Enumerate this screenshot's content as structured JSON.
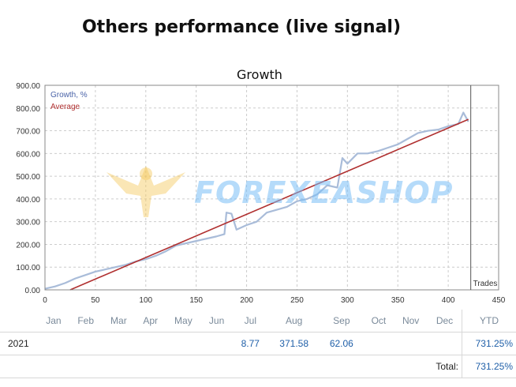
{
  "page_title": "Others performance (live signal)",
  "watermark_text": "FOREXEASHOP",
  "chart_data": {
    "type": "line",
    "title": "Growth",
    "xlim": [
      0,
      450
    ],
    "ylim": [
      0,
      900
    ],
    "x_ticks": [
      "0",
      "50",
      "100",
      "150",
      "200",
      "250",
      "300",
      "350",
      "400",
      "450"
    ],
    "y_ticks": [
      "0.00",
      "100.00",
      "200.00",
      "300.00",
      "400.00",
      "500.00",
      "600.00",
      "700.00",
      "800.00",
      "900.00"
    ],
    "trades_label": "Trades",
    "grid": true,
    "legend_position": "top-left",
    "colors": {
      "growth": "#a9bcd9",
      "average": "#b03030",
      "axis": "#888888",
      "grid": "#cccccc"
    },
    "series": [
      {
        "name": "Growth, %",
        "x": [
          0,
          10,
          20,
          30,
          40,
          50,
          60,
          70,
          80,
          90,
          100,
          110,
          120,
          130,
          140,
          150,
          160,
          170,
          178,
          180,
          185,
          190,
          200,
          210,
          220,
          240,
          250,
          260,
          270,
          280,
          290,
          295,
          300,
          310,
          320,
          330,
          340,
          350,
          360,
          370,
          380,
          390,
          400,
          410,
          415,
          420
        ],
        "y": [
          5,
          15,
          30,
          50,
          65,
          80,
          90,
          100,
          110,
          125,
          135,
          150,
          170,
          195,
          205,
          215,
          225,
          235,
          245,
          340,
          335,
          265,
          285,
          300,
          340,
          365,
          390,
          400,
          420,
          460,
          450,
          580,
          555,
          600,
          600,
          610,
          625,
          640,
          665,
          690,
          700,
          705,
          720,
          730,
          780,
          740
        ]
      },
      {
        "name": "Average",
        "x": [
          25,
          420
        ],
        "y": [
          0,
          750
        ]
      }
    ]
  },
  "table": {
    "months": [
      "Jan",
      "Feb",
      "Mar",
      "Apr",
      "May",
      "Jun",
      "Jul",
      "Aug",
      "Sep",
      "Oct",
      "Nov",
      "Dec"
    ],
    "ytd_header": "YTD",
    "year": "2021",
    "values": [
      "",
      "",
      "",
      "",
      "",
      "",
      "8.77",
      "371.58",
      "62.06",
      "",
      "",
      ""
    ],
    "ytd_value": "731.25%",
    "total_label": "Total:",
    "total_value": "731.25%"
  }
}
